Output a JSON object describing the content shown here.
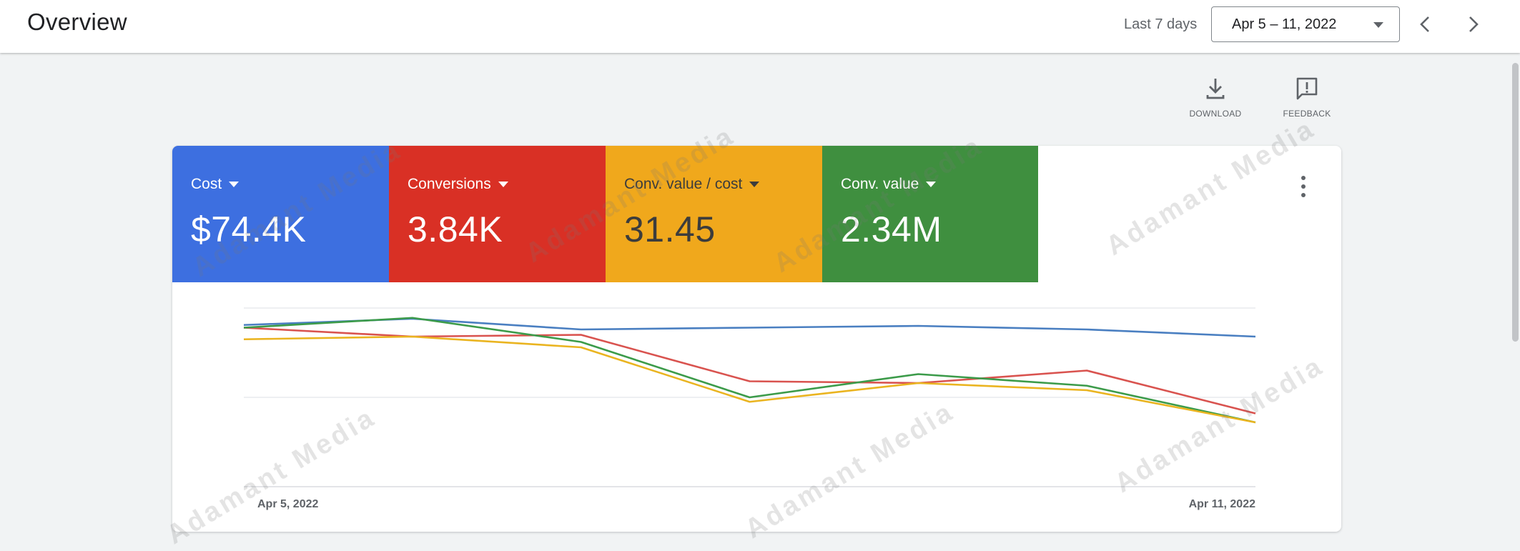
{
  "header": {
    "title": "Overview",
    "range_label": "Last 7 days",
    "date_range": "Apr 5 – 11, 2022"
  },
  "actions": {
    "download_label": "DOWNLOAD",
    "feedback_label": "FEEDBACK"
  },
  "metrics": [
    {
      "label": "Cost",
      "value": "$74.4K",
      "color": "#3d6fe0"
    },
    {
      "label": "Conversions",
      "value": "3.84K",
      "color": "#d93025"
    },
    {
      "label": "Conv. value / cost",
      "value": "31.45",
      "color": "#f0a81c"
    },
    {
      "label": "Conv. value",
      "value": "2.34M",
      "color": "#3f8f3f"
    }
  ],
  "chart_data": {
    "type": "line",
    "x": [
      "Apr 5, 2022",
      "Apr 6, 2022",
      "Apr 7, 2022",
      "Apr 8, 2022",
      "Apr 9, 2022",
      "Apr 10, 2022",
      "Apr 11, 2022"
    ],
    "x_tick_labels": [
      "Apr 5, 2022",
      "Apr 11, 2022"
    ],
    "ylim": [
      0,
      200
    ],
    "grid": true,
    "series": [
      {
        "color": "#4a7fc1",
        "values": [
          181,
          188,
          176,
          178,
          180,
          176,
          168
        ]
      },
      {
        "color": "#d9534f",
        "values": [
          178,
          168,
          170,
          118,
          116,
          130,
          82
        ]
      },
      {
        "color": "#3c9b4a",
        "values": [
          178,
          189,
          162,
          100,
          126,
          113,
          72
        ]
      },
      {
        "color": "#eab420",
        "values": [
          165,
          168,
          156,
          95,
          116,
          108,
          72
        ]
      }
    ]
  },
  "watermark": "Adamant Media"
}
